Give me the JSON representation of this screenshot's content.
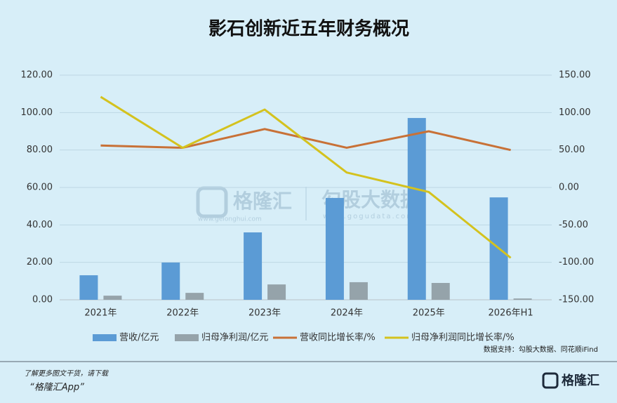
{
  "chart_data": {
    "type": "bar",
    "title": "影石创新近五年财务概况",
    "categories": [
      "2021年",
      "2022年",
      "2023年",
      "2024年",
      "2025年",
      "2026年H1"
    ],
    "series": [
      {
        "name": "营收/亿元",
        "type": "bar",
        "color": "#5b9bd5",
        "values": [
          13.1,
          19.9,
          36.0,
          54.4,
          97.1,
          54.7
        ]
      },
      {
        "name": "归母净利润/亿元",
        "type": "bar",
        "color": "#95a3aa",
        "values": [
          2.2,
          3.7,
          8.2,
          9.4,
          9.0,
          0.7
        ]
      },
      {
        "name": "营收同比增长率/%",
        "type": "line",
        "axis": "y2",
        "color": "#c87137",
        "values": [
          56,
          53,
          78,
          53,
          75,
          50
        ]
      },
      {
        "name": "归母净利润同比增长率/%",
        "type": "line",
        "axis": "y2",
        "color": "#d4c21e",
        "values": [
          121,
          53,
          104,
          20,
          -6,
          -94
        ]
      }
    ],
    "ylim": [
      0,
      120
    ],
    "yticks": [
      {
        "value": 0,
        "label": "0.00"
      },
      {
        "value": 20,
        "label": "20.00"
      },
      {
        "value": 40,
        "label": "40.00"
      },
      {
        "value": 60,
        "label": "60.00"
      },
      {
        "value": 80,
        "label": "80.00"
      },
      {
        "value": 100,
        "label": "100.00"
      },
      {
        "value": 120,
        "label": "120.00"
      }
    ],
    "y2lim": [
      -150,
      150
    ],
    "y2ticks": [
      {
        "value": -150,
        "label": "-150.00"
      },
      {
        "value": -100,
        "label": "-100.00"
      },
      {
        "value": -50,
        "label": "-50.00"
      },
      {
        "value": 0,
        "label": "0.00"
      },
      {
        "value": 50,
        "label": "50.00"
      },
      {
        "value": 100,
        "label": "100.00"
      },
      {
        "value": 150,
        "label": "150.00"
      }
    ],
    "grid": true,
    "legend": "bottom",
    "source": "数据支持：勾股大数据、同花顺iFind"
  },
  "watermark": {
    "brand": "格隆汇",
    "brand_url": "www.gelonghui.com",
    "partner": "勾股大数据",
    "partner_url": "www.gogudata.com"
  },
  "footer": {
    "note": "了解更多图文干货，请下载",
    "app": "“格隆汇App”",
    "logo": "格隆汇"
  }
}
